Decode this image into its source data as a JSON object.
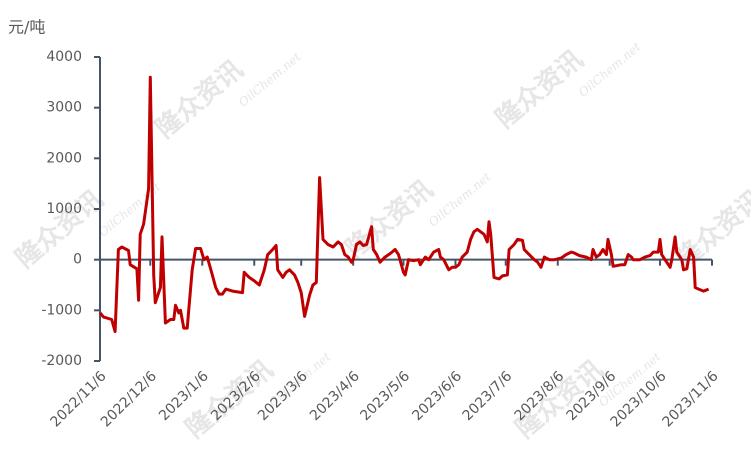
{
  "chart_data": {
    "type": "line",
    "y_label": "元/吨",
    "watermark": {
      "text": "隆众资讯",
      "subtext": "OilChem.net"
    },
    "xlim": [
      "2022/11/6",
      "2023/11/6"
    ],
    "xticks": [
      "2022/11/6",
      "2022/12/6",
      "2023/1/6",
      "2023/2/6",
      "2023/3/6",
      "2023/4/6",
      "2023/5/6",
      "2023/6/6",
      "2023/7/6",
      "2023/8/6",
      "2023/9/6",
      "2023/10/6",
      "2023/11/6"
    ],
    "ylim": [
      -2000,
      4000
    ],
    "yticks": [
      -2000,
      -1000,
      0,
      1000,
      2000,
      3000,
      4000
    ],
    "x": [
      "2022/11/6",
      "2022/11/8",
      "2022/11/13",
      "2022/11/15",
      "2022/11/17",
      "2022/11/19",
      "2022/11/23",
      "2022/11/24",
      "2022/11/28",
      "2022/11/29",
      "2022/11/30",
      "2022/12/2",
      "2022/12/5",
      "2022/12/6",
      "2022/12/8",
      "2022/12/9",
      "2022/12/11",
      "2022/12/12",
      "2022/12/13",
      "2022/12/15",
      "2022/12/18",
      "2022/12/20",
      "2022/12/21",
      "2022/12/23",
      "2022/12/24",
      "2022/12/26",
      "2022/12/28",
      "2022/12/31",
      "2023/1/2",
      "2023/1/5",
      "2023/1/7",
      "2023/1/9",
      "2023/1/12",
      "2023/1/14",
      "2023/1/16",
      "2023/1/18",
      "2023/1/20",
      "2023/1/24",
      "2023/1/30",
      "2023/1/31",
      "2023/2/3",
      "2023/2/6",
      "2023/2/9",
      "2023/2/12",
      "2023/2/14",
      "2023/2/17",
      "2023/2/19",
      "2023/2/20",
      "2023/2/23",
      "2023/2/25",
      "2023/2/27",
      "2023/3/2",
      "2023/3/4",
      "2023/3/6",
      "2023/3/8",
      "2023/3/11",
      "2023/3/13",
      "2023/3/15",
      "2023/3/17",
      "2023/3/19",
      "2023/3/22",
      "2023/3/25",
      "2023/3/28",
      "2023/3/30",
      "2023/4/1",
      "2023/4/3",
      "2023/4/5",
      "2023/4/6",
      "2023/4/8",
      "2023/4/10",
      "2023/4/12",
      "2023/4/14",
      "2023/4/17",
      "2023/4/18",
      "2023/4/20",
      "2023/4/22",
      "2023/4/25",
      "2023/4/28",
      "2023/5/1",
      "2023/5/3",
      "2023/5/6",
      "2023/5/7",
      "2023/5/9",
      "2023/5/12",
      "2023/5/15",
      "2023/5/16",
      "2023/5/19",
      "2023/5/21",
      "2023/5/24",
      "2023/5/27",
      "2023/5/28",
      "2023/5/30",
      "2023/6/2",
      "2023/6/4",
      "2023/6/6",
      "2023/6/8",
      "2023/6/10",
      "2023/6/13",
      "2023/6/15",
      "2023/6/17",
      "2023/6/19",
      "2023/6/23",
      "2023/6/25",
      "2023/6/26",
      "2023/6/27",
      "2023/6/29",
      "2023/7/2",
      "2023/7/4",
      "2023/7/7",
      "2023/7/8",
      "2023/7/11",
      "2023/7/13",
      "2023/7/16",
      "2023/7/17",
      "2023/7/20",
      "2023/7/23",
      "2023/7/25",
      "2023/7/27",
      "2023/7/29",
      "2023/8/1",
      "2023/8/4",
      "2023/8/8",
      "2023/8/11",
      "2023/8/14",
      "2023/8/16",
      "2023/8/19",
      "2023/8/23",
      "2023/8/26",
      "2023/8/27",
      "2023/8/29",
      "2023/8/31",
      "2023/9/2",
      "2023/9/4",
      "2023/9/5",
      "2023/9/7",
      "2023/9/8",
      "2023/9/10",
      "2023/9/13",
      "2023/9/15",
      "2023/9/17",
      "2023/9/19",
      "2023/9/20",
      "2023/9/24",
      "2023/9/27",
      "2023/9/30",
      "2023/10/2",
      "2023/10/5",
      "2023/10/6",
      "2023/10/7",
      "2023/10/10",
      "2023/10/12",
      "2023/10/13",
      "2023/10/15",
      "2023/10/16",
      "2023/10/19",
      "2023/10/20",
      "2023/10/22",
      "2023/10/24",
      "2023/10/26",
      "2023/10/27",
      "2023/10/29",
      "2023/11/1",
      "2023/11/4"
    ],
    "series": [
      {
        "color": "#c00000",
        "values": [
          -1050,
          -1130,
          -1180,
          -1420,
          200,
          250,
          180,
          -100,
          -180,
          -800,
          500,
          700,
          1400,
          3600,
          -300,
          -850,
          -650,
          -550,
          450,
          -1250,
          -1180,
          -1180,
          -900,
          -1050,
          -1000,
          -1350,
          -1350,
          -200,
          220,
          220,
          0,
          50,
          -300,
          -550,
          -680,
          -680,
          -580,
          -620,
          -650,
          -250,
          -350,
          -420,
          -500,
          -200,
          100,
          200,
          280,
          -200,
          -350,
          -250,
          -200,
          -300,
          -450,
          -650,
          -1120,
          -700,
          -500,
          -450,
          1620,
          400,
          300,
          250,
          350,
          300,
          100,
          50,
          -50,
          0,
          300,
          350,
          280,
          300,
          650,
          200,
          100,
          -50,
          50,
          120,
          200,
          100,
          -250,
          -300,
          0,
          -20,
          0,
          -100,
          50,
          0,
          150,
          200,
          50,
          0,
          -200,
          -150,
          -150,
          -100,
          50,
          150,
          400,
          550,
          600,
          500,
          350,
          750,
          500,
          -350,
          -380,
          -320,
          -300,
          200,
          300,
          400,
          380,
          200,
          100,
          0,
          -50,
          -150,
          50,
          0,
          0,
          30,
          100,
          150,
          130,
          80,
          50,
          0,
          200,
          50,
          100,
          200,
          100,
          400,
          100,
          -130,
          -120,
          -100,
          -100,
          100,
          50,
          0,
          0,
          50,
          80,
          150,
          150,
          400,
          100,
          -50,
          -150,
          0,
          450,
          150,
          0,
          -200,
          -180,
          200,
          50,
          -550,
          -580,
          -620,
          -580
        ]
      }
    ]
  }
}
